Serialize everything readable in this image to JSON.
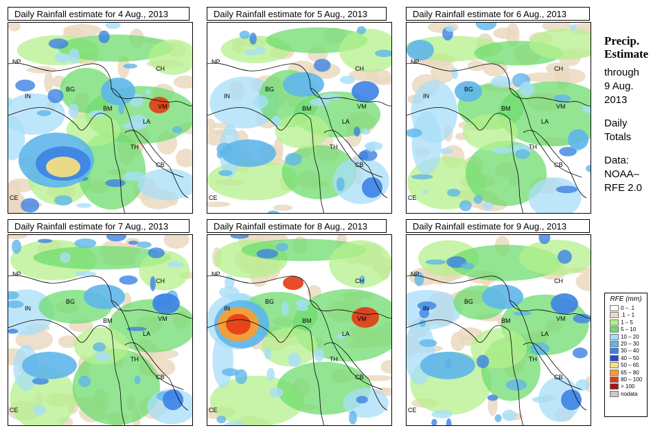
{
  "panels": [
    {
      "title": "Daily Rainfall estimate for  4 Aug., 2013",
      "intensity": "high-bay"
    },
    {
      "title": "Daily Rainfall estimate for  5 Aug., 2013",
      "intensity": "moderate"
    },
    {
      "title": "Daily Rainfall estimate for  6 Aug., 2013",
      "intensity": "light"
    },
    {
      "title": "Daily Rainfall estimate for  7 Aug., 2013",
      "intensity": "moderate"
    },
    {
      "title": "Daily Rainfall estimate for  8 Aug., 2013",
      "intensity": "high-india"
    },
    {
      "title": "Daily Rainfall estimate for  9 Aug., 2013",
      "intensity": "moderate"
    }
  ],
  "country_labels": [
    "NP",
    "CH",
    "IN",
    "BG",
    "BM",
    "VM",
    "LA",
    "TH",
    "CB",
    "CE"
  ],
  "side_text": {
    "heading1": "Precip.",
    "heading2": "Estimate",
    "line1": "through",
    "line2": "9 Aug.",
    "line3": "2013",
    "line4": "Daily",
    "line5": "Totals",
    "line6": "Data:",
    "line7": "NOAA–",
    "line8": "RFE 2.0"
  },
  "legend": {
    "title": "RFE (mm)",
    "items": [
      {
        "label": "0 – .1",
        "color": "#ffffff"
      },
      {
        "label": ".1 – 1",
        "color": "#ead9bf"
      },
      {
        "label": "1 – 5",
        "color": "#b4f08c"
      },
      {
        "label": "5 – 10",
        "color": "#6fdc6f"
      },
      {
        "label": "10 – 20",
        "color": "#a8def8"
      },
      {
        "label": "20 – 30",
        "color": "#5fb6ea"
      },
      {
        "label": "30 – 40",
        "color": "#3d82e4"
      },
      {
        "label": "40 – 50",
        "color": "#1f4fd0"
      },
      {
        "label": "50 – 65",
        "color": "#fde27a"
      },
      {
        "label": "65 – 80",
        "color": "#ff9c2a"
      },
      {
        "label": "80 – 100",
        "color": "#e53a14"
      },
      {
        "label": "> 100",
        "color": "#a21414"
      },
      {
        "label": "nodata",
        "color": "#c8c8c8"
      }
    ]
  }
}
